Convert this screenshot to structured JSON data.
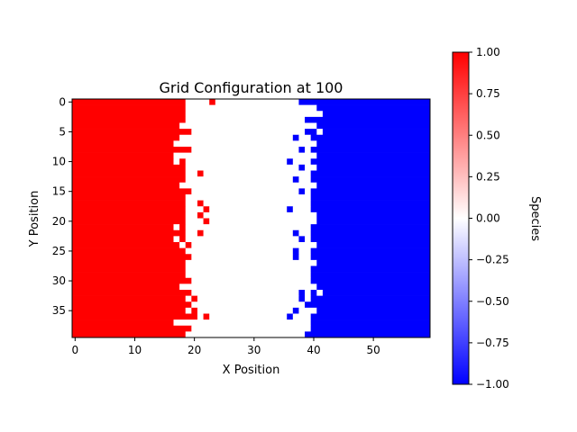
{
  "chart_data": {
    "type": "heatmap",
    "title": "Grid Configuration at 100",
    "xlabel": "X Position",
    "ylabel": "Y Position",
    "grid_width": 60,
    "grid_height": 40,
    "xticks": [
      0,
      10,
      20,
      30,
      40,
      50
    ],
    "yticks": [
      0,
      5,
      10,
      15,
      20,
      25,
      30,
      35
    ],
    "colorbar": {
      "label": "Species",
      "vmin": -1.0,
      "vmax": 1.0,
      "colormap": "bwr",
      "ticks": [
        "1.00",
        "0.75",
        "0.50",
        "0.25",
        "0.00",
        "−0.25",
        "−0.50",
        "−0.75",
        "−1.00"
      ],
      "tick_values": [
        1.0,
        0.75,
        0.5,
        0.25,
        0.0,
        -0.25,
        -0.5,
        -0.75,
        -1.0
      ]
    },
    "values_legend": {
      "1": "red species",
      "0": "empty",
      "-1": "blue species"
    },
    "red_boundary_by_row": [
      19,
      19,
      19,
      19,
      18,
      20,
      18,
      17,
      20,
      17,
      19,
      19,
      19,
      19,
      18,
      19,
      19,
      19,
      19,
      19,
      19,
      19,
      19,
      19,
      18,
      19,
      19,
      19,
      19,
      19,
      20,
      18,
      19,
      19,
      19,
      19,
      21,
      17,
      20,
      19
    ],
    "red_extra_cells": [
      [
        0,
        23
      ],
      [
        11,
        18
      ],
      [
        12,
        21
      ],
      [
        15,
        19
      ],
      [
        17,
        21
      ],
      [
        18,
        22
      ],
      [
        19,
        21
      ],
      [
        20,
        22
      ],
      [
        21,
        18
      ],
      [
        22,
        21
      ],
      [
        24,
        19
      ],
      [
        26,
        19
      ],
      [
        32,
        19
      ],
      [
        33,
        20
      ],
      [
        34,
        19
      ],
      [
        35,
        20
      ],
      [
        36,
        22
      ]
    ],
    "red_holes": [
      [
        10,
        17
      ],
      [
        21,
        17
      ],
      [
        23,
        17
      ]
    ],
    "blue_boundary_by_row": [
      39,
      40,
      41,
      40,
      41,
      39,
      40,
      41,
      40,
      40,
      41,
      41,
      40,
      40,
      41,
      40,
      40,
      40,
      40,
      40,
      40,
      40,
      40,
      40,
      40,
      40,
      40,
      41,
      40,
      40,
      40,
      41,
      40,
      40,
      40,
      41,
      40,
      40,
      40,
      40
    ],
    "blue_extra_cells": [
      [
        0,
        38
      ],
      [
        3,
        39
      ],
      [
        6,
        37
      ],
      [
        8,
        38
      ],
      [
        10,
        36
      ],
      [
        10,
        40
      ],
      [
        11,
        38
      ],
      [
        13,
        37
      ],
      [
        15,
        38
      ],
      [
        18,
        36
      ],
      [
        22,
        37
      ],
      [
        23,
        38
      ],
      [
        25,
        37
      ],
      [
        26,
        37
      ],
      [
        32,
        38
      ],
      [
        33,
        38
      ],
      [
        34,
        39
      ],
      [
        35,
        37
      ],
      [
        36,
        36
      ],
      [
        38,
        40
      ],
      [
        39,
        39
      ]
    ],
    "blue_holes": [
      [
        1,
        40
      ],
      [
        2,
        41
      ],
      [
        5,
        41
      ],
      [
        9,
        40
      ],
      [
        11,
        39
      ],
      [
        19,
        40
      ],
      [
        20,
        40
      ],
      [
        24,
        40
      ],
      [
        32,
        41
      ]
    ]
  }
}
